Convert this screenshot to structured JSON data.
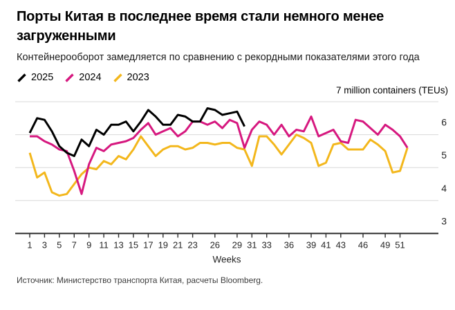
{
  "header": {
    "title": "Порты Китая в последнее время стали немного менее загруженными",
    "subtitle": "Контейнерооборот замедляется по сравнению с рекордными показателями этого года"
  },
  "chart_data": {
    "type": "line",
    "title": "Порты Китая в последнее время стали немного менее загруженными",
    "unit_label": "7 million containers (TEUs)",
    "xlabel": "Weeks",
    "ylabel": "million containers (TEUs)",
    "ylim": [
      3,
      7
    ],
    "y_ticks": [
      3,
      4,
      5,
      6
    ],
    "x_ticks": [
      1,
      3,
      5,
      7,
      9,
      11,
      13,
      15,
      17,
      19,
      21,
      23,
      26,
      29,
      31,
      33,
      36,
      39,
      41,
      43,
      46,
      49,
      51
    ],
    "grid": true,
    "legend_position": "top-left",
    "series": [
      {
        "name": "2025",
        "color": "#000000",
        "start_week": 1,
        "values": [
          6.05,
          6.5,
          6.45,
          6.1,
          5.65,
          5.45,
          5.35,
          5.85,
          5.65,
          6.15,
          6.0,
          6.3,
          6.3,
          6.4,
          6.1,
          6.4,
          6.75,
          6.55,
          6.3,
          6.3,
          6.6,
          6.55,
          6.4,
          6.4,
          6.8,
          6.75,
          6.6,
          6.65,
          6.7,
          6.25
        ]
      },
      {
        "name": "2024",
        "color": "#d6187f",
        "start_week": 1,
        "values": [
          5.95,
          5.95,
          5.8,
          5.7,
          5.55,
          5.5,
          4.9,
          4.2,
          5.1,
          5.6,
          5.5,
          5.7,
          5.75,
          5.8,
          5.9,
          6.15,
          6.35,
          6.0,
          6.1,
          6.2,
          5.95,
          6.1,
          6.4,
          6.4,
          6.3,
          6.4,
          6.2,
          6.45,
          6.35,
          5.6,
          6.15,
          6.4,
          6.3,
          6.0,
          6.3,
          5.95,
          6.15,
          6.1,
          6.55,
          5.95,
          6.05,
          6.15,
          5.8,
          5.75,
          6.45,
          6.4,
          6.2,
          6.0,
          6.3,
          6.15,
          5.95,
          5.6
        ]
      },
      {
        "name": "2023",
        "color": "#f3b71c",
        "start_week": 1,
        "values": [
          5.45,
          4.7,
          4.85,
          4.25,
          4.15,
          4.2,
          4.5,
          4.8,
          5.0,
          4.95,
          5.2,
          5.1,
          5.35,
          5.25,
          5.55,
          5.95,
          5.65,
          5.35,
          5.55,
          5.65,
          5.65,
          5.55,
          5.6,
          5.75,
          5.75,
          5.7,
          5.75,
          5.75,
          5.6,
          5.55,
          5.05,
          5.95,
          5.95,
          5.7,
          5.4,
          5.7,
          6.0,
          5.9,
          5.75,
          5.05,
          5.15,
          5.7,
          5.75,
          5.55,
          5.55,
          5.55,
          5.85,
          5.7,
          5.5,
          4.85,
          4.9,
          5.6
        ]
      }
    ]
  },
  "footer": {
    "source": "Источник: Министерство транспорта Китая, расчеты Bloomberg."
  },
  "colors": {
    "series_2025": "#000000",
    "series_2024": "#d6187f",
    "series_2023": "#f3b71c",
    "grid": "#d8d8d8",
    "axis": "#2a2a2a",
    "tick_text": "#262626",
    "title_text": "#000000",
    "source_text": "#3c3c3c",
    "background": "#ffffff"
  }
}
